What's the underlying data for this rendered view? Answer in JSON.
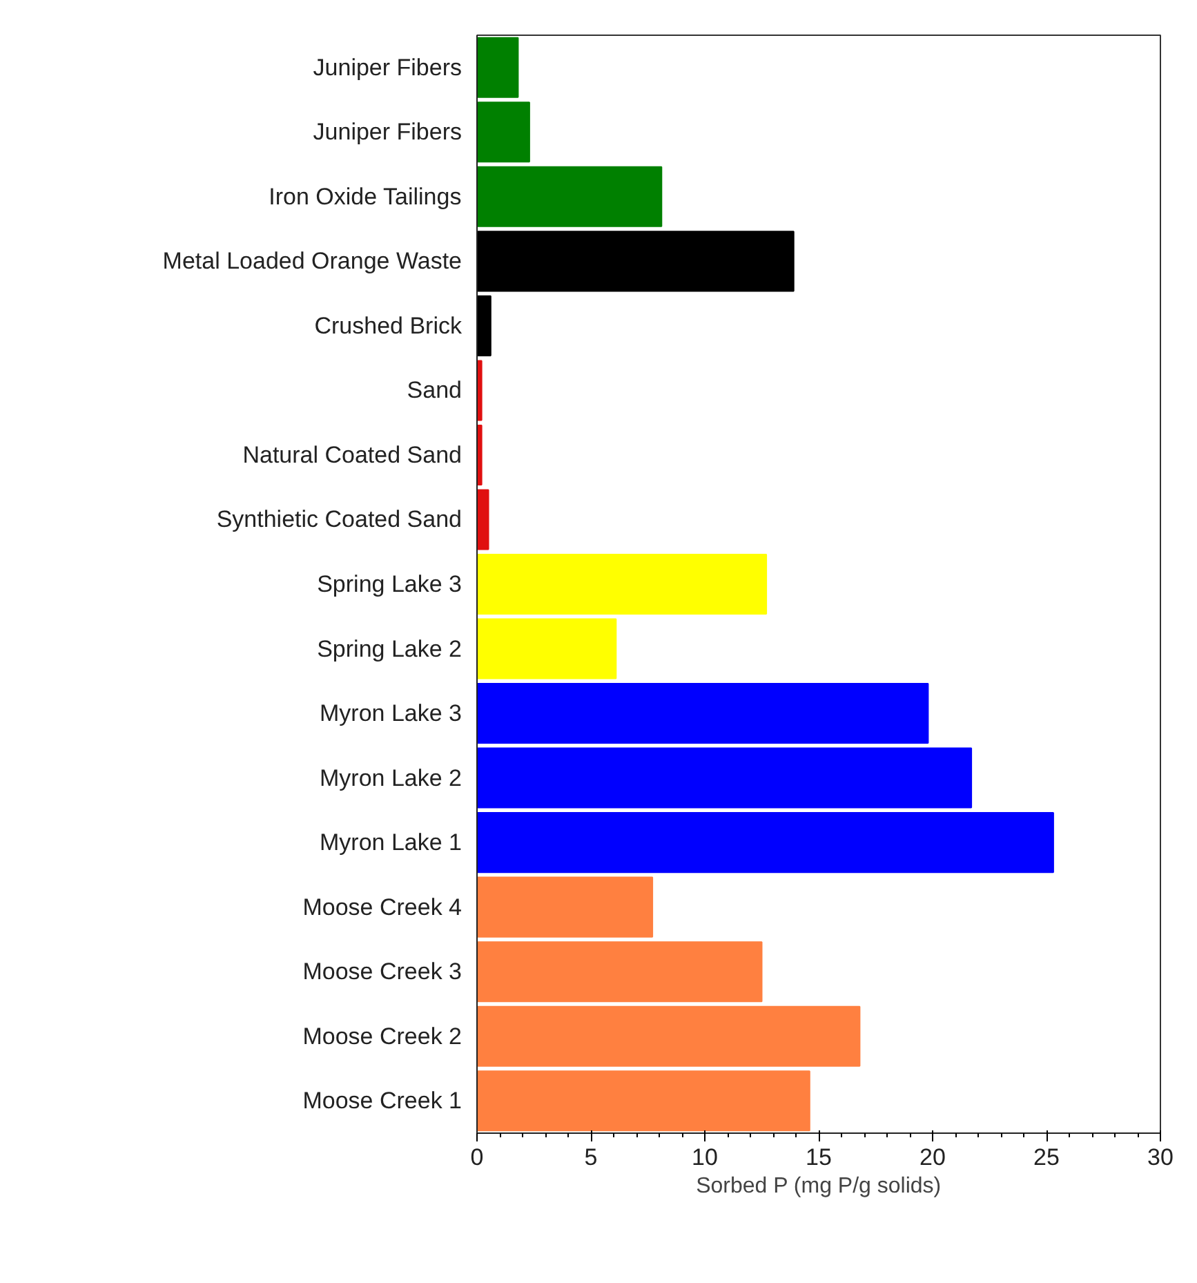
{
  "chart_data": {
    "type": "bar",
    "orientation": "horizontal",
    "xlabel": "Sorbed P (mg P/g solids)",
    "categories": [
      "Juniper Fibers",
      "Juniper Fibers",
      "Iron Oxide Tailings",
      "Metal Loaded Orange Waste",
      "Crushed Brick",
      "Sand",
      "Natural Coated Sand",
      "Synthietic Coated Sand",
      "Spring Lake 3",
      "Spring Lake 2",
      "Myron Lake 3",
      "Myron Lake 2",
      "Myron Lake 1",
      "Moose Creek 4",
      "Moose Creek 3",
      "Moose Creek 2",
      "Moose Creek 1"
    ],
    "values": [
      1.8,
      2.3,
      8.1,
      13.9,
      0.6,
      0.2,
      0.2,
      0.5,
      12.7,
      6.1,
      19.8,
      21.7,
      25.3,
      7.7,
      12.5,
      16.8,
      14.6
    ],
    "colors": [
      "#008000",
      "#008000",
      "#008000",
      "#000000",
      "#000000",
      "#e01010",
      "#e01010",
      "#e01010",
      "#ffff00",
      "#ffff00",
      "#0000ff",
      "#0000ff",
      "#0000ff",
      "#ff8040",
      "#ff8040",
      "#ff8040",
      "#ff8040"
    ],
    "xlim": [
      0,
      30
    ],
    "xticks": [
      0,
      5,
      10,
      15,
      20,
      25,
      30
    ],
    "grid": false
  }
}
